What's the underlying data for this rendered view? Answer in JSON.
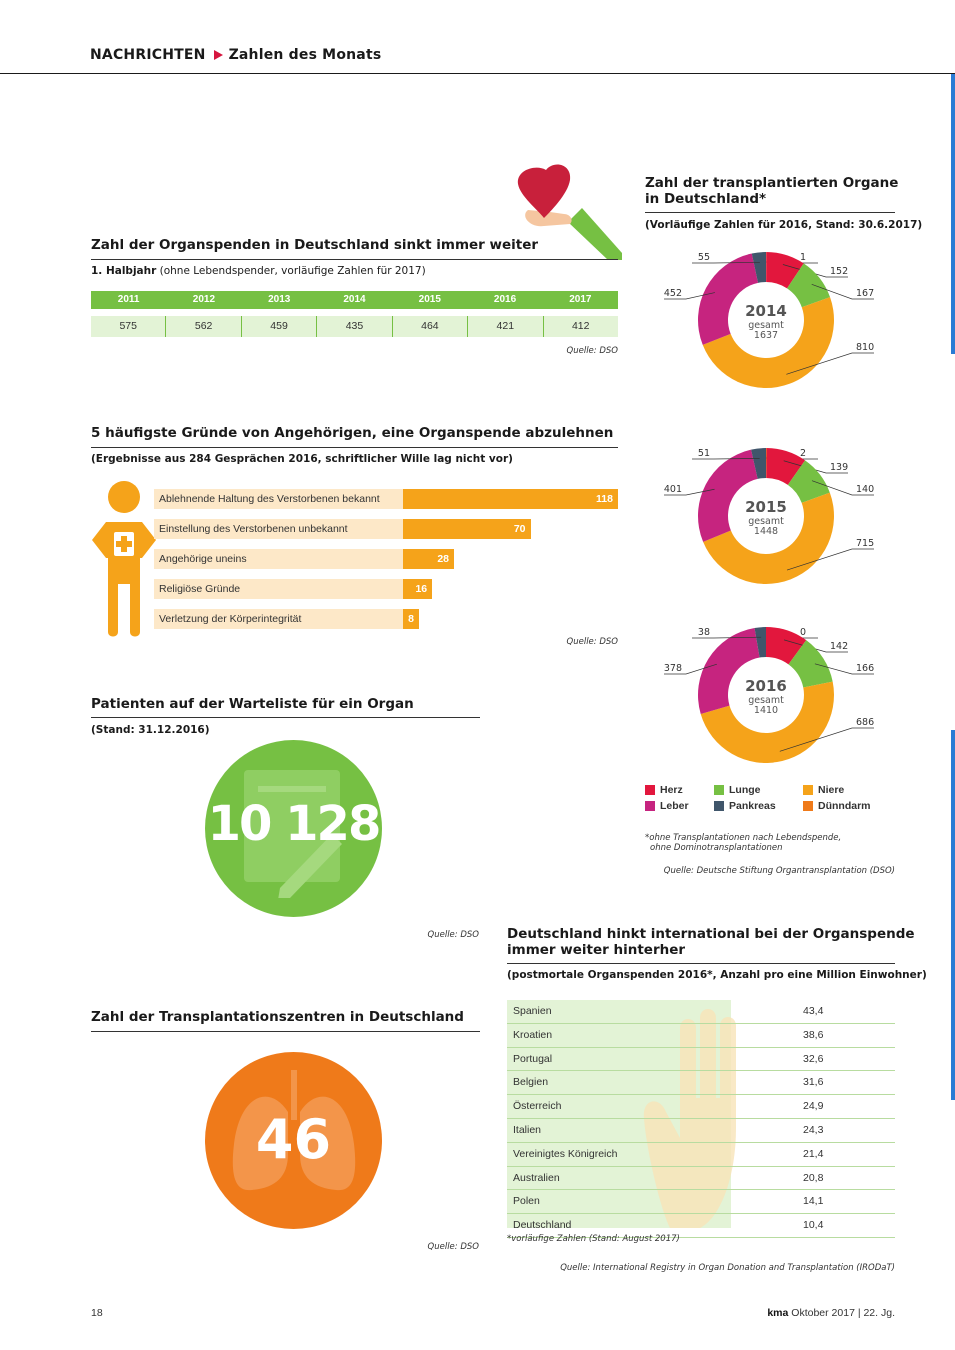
{
  "header": {
    "section": "NACHRICHTEN",
    "topic": "Zahlen des Monats"
  },
  "organ_donations": {
    "title": "Zahl der Organspenden in Deutschland sinkt immer weiter",
    "subtitle_bold": "1. Halbjahr",
    "subtitle_rest": " (ohne Lebendspender, vorläufige Zahlen für 2017)",
    "source": "Quelle: DSO",
    "years": [
      "2011",
      "2012",
      "2013",
      "2014",
      "2015",
      "2016",
      "2017"
    ],
    "values": [
      "575",
      "562",
      "459",
      "435",
      "464",
      "421",
      "412"
    ]
  },
  "reasons": {
    "title": "5 häufigste Gründe von Angehörigen, eine Organspende abzulehnen",
    "subtitle": "(Ergebnisse aus 284 Gesprächen 2016, schriftlicher Wille lag nicht vor)",
    "source": "Quelle: DSO",
    "items": [
      {
        "label": "Ablehnende Haltung des Verstorbenen bekannt",
        "value": "118"
      },
      {
        "label": "Einstellung des Verstorbenen unbekannt",
        "value": "70"
      },
      {
        "label": "Angehörige uneins",
        "value": "28"
      },
      {
        "label": "Religiöse Gründe",
        "value": "16"
      },
      {
        "label": "Verletzung der Körperintegrität",
        "value": "8"
      }
    ]
  },
  "waitlist": {
    "title": "Patienten auf der Warteliste für ein Organ",
    "subtitle": "(Stand: 31.12.2016)",
    "number": "10 128",
    "source": "Quelle: DSO"
  },
  "centers": {
    "title": "Zahl der Transplantationszentren in Deutschland",
    "number": "46",
    "source": "Quelle: DSO"
  },
  "transplants": {
    "title_line1": "Zahl der transplantierten Organe",
    "title_line2": "in Deutschland*",
    "subtitle": "(Vorläufige Zahlen für 2016, Stand: 30.6.2017)",
    "total_label": "gesamt",
    "footnote_line1": "*ohne Transplantationen nach Lebendspende,",
    "footnote_line2": "ohne Dominotransplantationen",
    "source": "Quelle: Deutsche Stiftung Organtransplantation (DSO)",
    "legend": [
      {
        "name": "Herz",
        "color": "#e2173d"
      },
      {
        "name": "Lunge",
        "color": "#76c043"
      },
      {
        "name": "Niere",
        "color": "#f5a31a"
      },
      {
        "name": "Leber",
        "color": "#c6247f"
      },
      {
        "name": "Pankreas",
        "color": "#40566b"
      },
      {
        "name": "Dünndarm",
        "color": "#ef7a1a"
      }
    ]
  },
  "chart_data": [
    {
      "type": "pie",
      "title": "2014",
      "total": "1637",
      "categories": [
        "Dünndarm",
        "Herz",
        "Lunge",
        "Niere",
        "Leber",
        "Pankreas"
      ],
      "values": [
        1,
        152,
        167,
        810,
        452,
        55
      ]
    },
    {
      "type": "pie",
      "title": "2015",
      "total": "1448",
      "categories": [
        "Dünndarm",
        "Herz",
        "Lunge",
        "Niere",
        "Leber",
        "Pankreas"
      ],
      "values": [
        2,
        139,
        140,
        715,
        401,
        51
      ]
    },
    {
      "type": "pie",
      "title": "2016",
      "total": "1410",
      "categories": [
        "Dünndarm",
        "Herz",
        "Lunge",
        "Niere",
        "Leber",
        "Pankreas"
      ],
      "values": [
        0,
        142,
        166,
        686,
        378,
        38
      ]
    }
  ],
  "international": {
    "title_line1": "Deutschland hinkt international bei der Organspende",
    "title_line2": "immer weiter hinterher",
    "subtitle": "(postmortale Organspenden 2016*, Anzahl pro eine Million Einwohner)",
    "footnote": "*vorläufige Zahlen (Stand: August 2017)",
    "source": "Quelle: International Registry in Organ Donation and Transplantation (IRODaT)",
    "rows": [
      {
        "country": "Spanien",
        "value": "43,4"
      },
      {
        "country": "Kroatien",
        "value": "38,6"
      },
      {
        "country": "Portugal",
        "value": "32,6"
      },
      {
        "country": "Belgien",
        "value": "31,6"
      },
      {
        "country": "Österreich",
        "value": "24,9"
      },
      {
        "country": "Italien",
        "value": "24,3"
      },
      {
        "country": "Vereinigtes Königreich",
        "value": "21,4"
      },
      {
        "country": "Australien",
        "value": "20,8"
      },
      {
        "country": "Polen",
        "value": "14,1"
      },
      {
        "country": "Deutschland",
        "value": "10,4"
      }
    ]
  },
  "footer": {
    "page": "18",
    "brand": "kma",
    "issue": "Oktober 2017  |  22. Jg."
  }
}
